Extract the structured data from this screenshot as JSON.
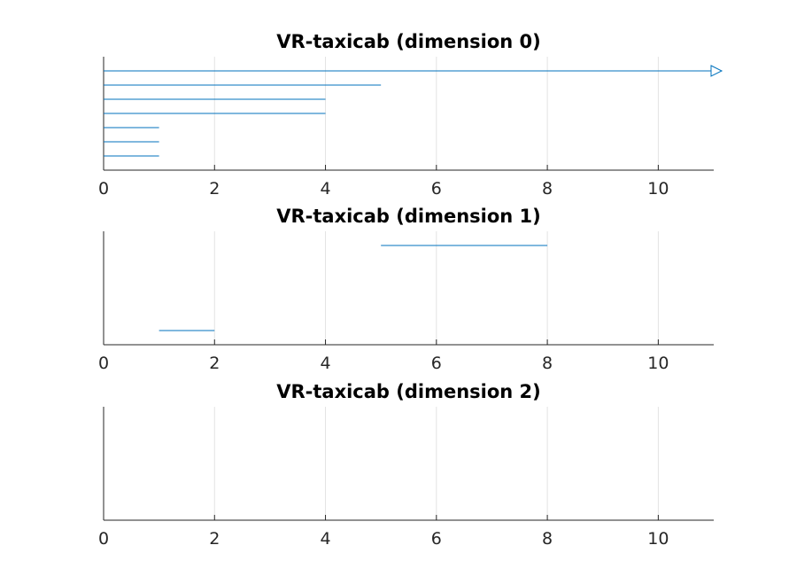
{
  "colors": {
    "series": "#0072bd"
  },
  "chart_data": [
    {
      "type": "barcode",
      "title": "VR-taxicab (dimension 0)",
      "xlim": [
        0,
        11
      ],
      "xticks": [
        0,
        2,
        4,
        6,
        8,
        10
      ],
      "tick_labels": [
        "0",
        "2",
        "4",
        "6",
        "8",
        "10"
      ],
      "grid": "x",
      "intervals": [
        {
          "birth": 0,
          "death": null,
          "infinite": true
        },
        {
          "birth": 0,
          "death": 5
        },
        {
          "birth": 0,
          "death": 4
        },
        {
          "birth": 0,
          "death": 4
        },
        {
          "birth": 0,
          "death": 1
        },
        {
          "birth": 0,
          "death": 1
        },
        {
          "birth": 0,
          "death": 1
        }
      ]
    },
    {
      "type": "barcode",
      "title": "VR-taxicab (dimension 1)",
      "xlim": [
        0,
        11
      ],
      "xticks": [
        0,
        2,
        4,
        6,
        8,
        10
      ],
      "tick_labels": [
        "0",
        "2",
        "4",
        "6",
        "8",
        "10"
      ],
      "grid": "x",
      "intervals": [
        {
          "birth": 5,
          "death": 8
        },
        {
          "birth": 1,
          "death": 2
        }
      ]
    },
    {
      "type": "barcode",
      "title": "VR-taxicab (dimension 2)",
      "xlim": [
        0,
        11
      ],
      "xticks": [
        0,
        2,
        4,
        6,
        8,
        10
      ],
      "tick_labels": [
        "0",
        "2",
        "4",
        "6",
        "8",
        "10"
      ],
      "grid": "x",
      "intervals": []
    }
  ]
}
